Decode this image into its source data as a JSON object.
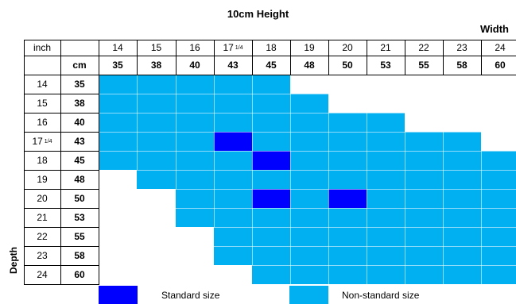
{
  "title": "10cm Height",
  "width_axis_label": "Width",
  "depth_axis_label": "Depth",
  "header": {
    "inch_label": "inch",
    "cm_label": "cm"
  },
  "width_cols": [
    {
      "inch": "14",
      "cm": "35"
    },
    {
      "inch": "15",
      "cm": "38"
    },
    {
      "inch": "16",
      "cm": "40"
    },
    {
      "inch": "17",
      "inch_sup": "1/4",
      "cm": "43"
    },
    {
      "inch": "18",
      "cm": "45"
    },
    {
      "inch": "19",
      "cm": "48"
    },
    {
      "inch": "20",
      "cm": "50"
    },
    {
      "inch": "21",
      "cm": "53"
    },
    {
      "inch": "22",
      "cm": "55"
    },
    {
      "inch": "23",
      "cm": "58"
    },
    {
      "inch": "24",
      "cm": "60"
    }
  ],
  "depth_rows": [
    {
      "inch": "14",
      "cm": "35",
      "start": 0
    },
    {
      "inch": "15",
      "cm": "38",
      "start": 0
    },
    {
      "inch": "16",
      "cm": "40",
      "start": 0
    },
    {
      "inch": "17",
      "inch_sup": "1/4",
      "cm": "43",
      "start": 0
    },
    {
      "inch": "18",
      "cm": "45",
      "start": 0
    },
    {
      "inch": "19",
      "cm": "48",
      "start": 1
    },
    {
      "inch": "20",
      "cm": "50",
      "start": 2
    },
    {
      "inch": "21",
      "cm": "53",
      "start": 2
    },
    {
      "inch": "22",
      "cm": "55",
      "start": 3
    },
    {
      "inch": "23",
      "cm": "58",
      "start": 3
    },
    {
      "inch": "24",
      "cm": "60",
      "start": 4
    }
  ],
  "row_ends": [
    4,
    5,
    7,
    9,
    10,
    10,
    10,
    10,
    10,
    10,
    10
  ],
  "standard_cells": [
    [
      3,
      3
    ],
    [
      4,
      4
    ],
    [
      6,
      4
    ],
    [
      6,
      6
    ]
  ],
  "colors": {
    "standard": "#0000ff",
    "non_standard": "#00b0f0"
  },
  "legend": {
    "standard_label": "Standard size",
    "non_standard_label": "Non-standard size"
  }
}
